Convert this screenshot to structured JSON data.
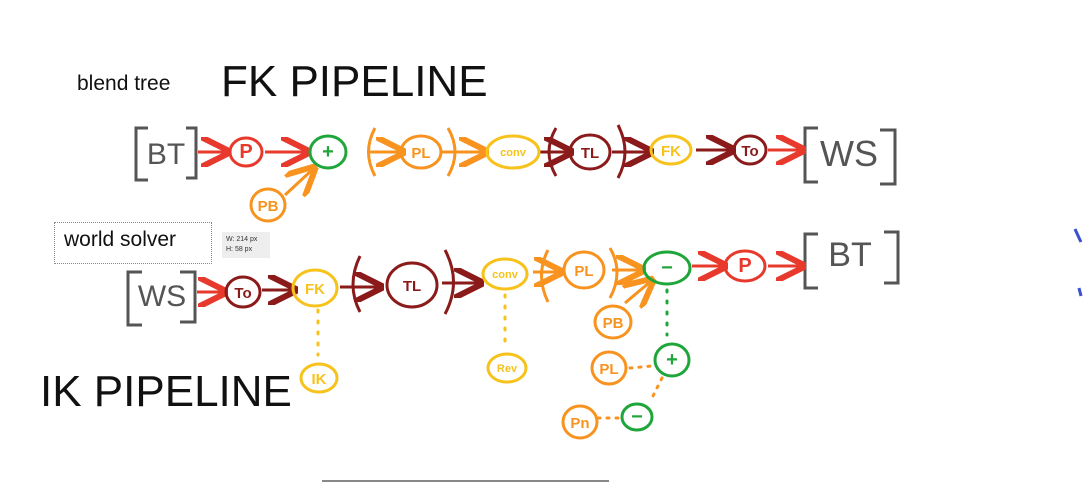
{
  "titles": {
    "fk": "FK PIPELINE",
    "ik": "IK PIPELINE"
  },
  "annotations": {
    "blend": "blend tree",
    "world": "world solver"
  },
  "tooltip": {
    "width": "W:  214 px",
    "height": "H:    58 px"
  },
  "colors": {
    "red": "#e8392d",
    "green": "#1fa63a",
    "orange": "#f7931e",
    "yellow": "#f6c21b",
    "maroon": "#8b1a1a",
    "gray": "#555555",
    "blue": "#3b4fd1"
  },
  "fk": {
    "start": "BT",
    "end": "WS",
    "nodes": [
      {
        "id": "fk-p",
        "text": "P",
        "color": "red"
      },
      {
        "id": "fk-plus",
        "text": "+",
        "color": "green"
      },
      {
        "id": "fk-pl",
        "text": "PL",
        "color": "orange"
      },
      {
        "id": "fk-conv",
        "text": "conv",
        "color": "yellow"
      },
      {
        "id": "fk-tl",
        "text": "TL",
        "color": "maroon"
      },
      {
        "id": "fk-fk",
        "text": "FK",
        "color": "yellow"
      },
      {
        "id": "fk-to",
        "text": "To",
        "color": "maroon"
      },
      {
        "id": "fk-pb",
        "text": "PB",
        "color": "orange"
      }
    ]
  },
  "ik": {
    "start": "WS",
    "end": "BT",
    "nodes": [
      {
        "id": "ik-to",
        "text": "To",
        "color": "maroon"
      },
      {
        "id": "ik-fk",
        "text": "FK",
        "color": "yellow"
      },
      {
        "id": "ik-tl",
        "text": "TL",
        "color": "maroon"
      },
      {
        "id": "ik-conv",
        "text": "conv",
        "color": "yellow"
      },
      {
        "id": "ik-pl",
        "text": "PL",
        "color": "orange"
      },
      {
        "id": "ik-minus",
        "text": "−",
        "color": "green"
      },
      {
        "id": "ik-p",
        "text": "P",
        "color": "red"
      },
      {
        "id": "ik-ik",
        "text": "IK",
        "color": "yellow"
      },
      {
        "id": "ik-rev",
        "text": "Rev",
        "color": "yellow"
      },
      {
        "id": "ik-pb",
        "text": "PB",
        "color": "orange"
      },
      {
        "id": "ik-pl2",
        "text": "PL",
        "color": "orange"
      },
      {
        "id": "ik-plus",
        "text": "+",
        "color": "green"
      },
      {
        "id": "ik-pn",
        "text": "Pn",
        "color": "orange"
      },
      {
        "id": "ik-minus2",
        "text": "−",
        "color": "green"
      }
    ]
  }
}
